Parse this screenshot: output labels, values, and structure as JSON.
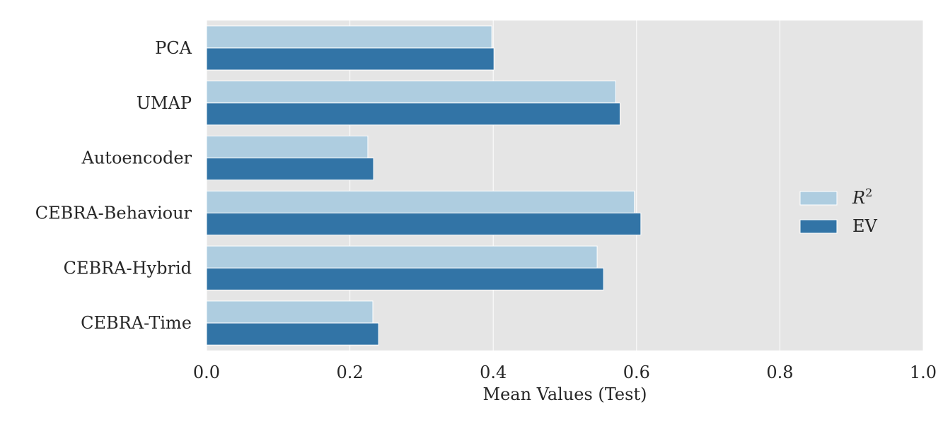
{
  "chart_data": {
    "type": "bar",
    "orientation": "horizontal",
    "categories": [
      "PCA",
      "UMAP",
      "Autoencoder",
      "CEBRA-Behaviour",
      "CEBRA-Hybrid",
      "CEBRA-Time"
    ],
    "series": [
      {
        "name": "R2",
        "color": "#aecde0",
        "values": [
          0.398,
          0.571,
          0.225,
          0.597,
          0.545,
          0.232
        ]
      },
      {
        "name": "EV",
        "color": "#3274a6",
        "values": [
          0.401,
          0.577,
          0.233,
          0.606,
          0.554,
          0.24
        ]
      }
    ],
    "xlabel": "Mean Values (Test)",
    "ylabel": "",
    "xlim": [
      0.0,
      1.0
    ],
    "xticks": [
      "0.0",
      "0.2",
      "0.4",
      "0.6",
      "0.8",
      "1.0"
    ],
    "grid": true,
    "legend_position": "center-right",
    "plot_background": "#e5e5e5",
    "grid_color": "#ffffff"
  }
}
